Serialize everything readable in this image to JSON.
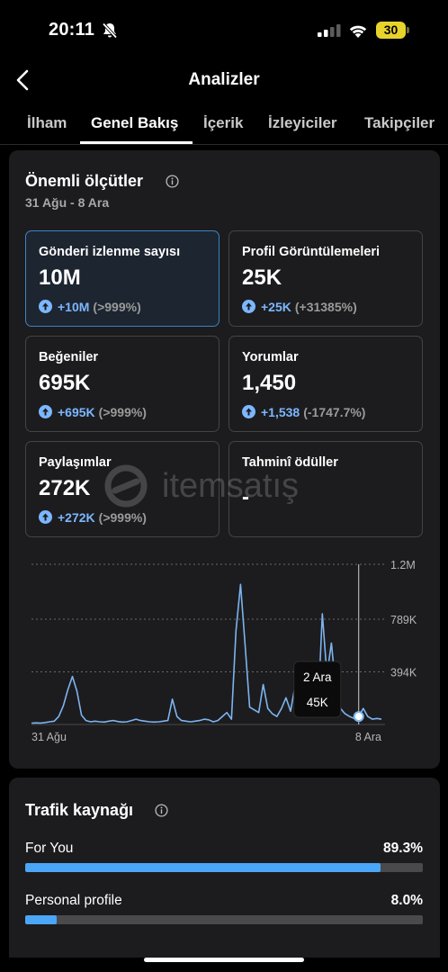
{
  "status_bar": {
    "time": "20:11",
    "battery": "30"
  },
  "header": {
    "title": "Analizler"
  },
  "tabs": [
    {
      "label": "İlham",
      "active": false
    },
    {
      "label": "Genel Bakış",
      "active": true
    },
    {
      "label": "İçerik",
      "active": false
    },
    {
      "label": "İzleyiciler",
      "active": false
    },
    {
      "label": "Takipçiler",
      "active": false
    }
  ],
  "key_metrics": {
    "title": "Önemli ölçütler",
    "date_range": "31 Ağu - 8 Ara",
    "cards": [
      {
        "label": "Gönderi izlenme sayısı",
        "value": "10M",
        "delta": "+10M",
        "pct": "(>999%)",
        "selected": true
      },
      {
        "label": "Profil Görüntülemeleri",
        "value": "25K",
        "delta": "+25K",
        "pct": "(+31385%)",
        "selected": false
      },
      {
        "label": "Beğeniler",
        "value": "695K",
        "delta": "+695K",
        "pct": "(>999%)",
        "selected": false
      },
      {
        "label": "Yorumlar",
        "value": "1,450",
        "delta": "+1,538",
        "pct": "(-1747.7%)",
        "selected": false
      },
      {
        "label": "Paylaşımlar",
        "value": "272K",
        "delta": "+272K",
        "pct": "(>999%)",
        "selected": false
      },
      {
        "label": "Tahminî ödüller",
        "value": "-",
        "delta": "",
        "pct": "",
        "selected": false
      }
    ]
  },
  "watermark": {
    "text": "itemsatış"
  },
  "chart_data": {
    "type": "line",
    "y_ticks": [
      "1.2M",
      "789K",
      "394K"
    ],
    "y_tick_values": [
      1200000,
      789000,
      394000
    ],
    "ylim": [
      0,
      1200000
    ],
    "x_tick_labels": [
      "31 Ağu",
      "8 Ara"
    ],
    "series": [
      {
        "values": [
          10000,
          12000,
          11000,
          15000,
          20000,
          25000,
          60000,
          140000,
          260000,
          360000,
          250000,
          70000,
          30000,
          20000,
          25000,
          20000,
          18000,
          25000,
          30000,
          22000,
          18000,
          20000,
          30000,
          40000,
          30000,
          25000,
          20000,
          18000,
          20000,
          25000,
          30000,
          190000,
          60000,
          30000,
          25000,
          20000,
          25000,
          30000,
          40000,
          35000,
          20000,
          30000,
          60000,
          90000,
          40000,
          700000,
          1050000,
          600000,
          130000,
          110000,
          90000,
          300000,
          120000,
          80000,
          60000,
          120000,
          200000,
          100000,
          290000,
          270000,
          170000,
          60000,
          60000,
          80000,
          830000,
          370000,
          610000,
          250000,
          120000,
          80000,
          60000,
          45000,
          60000,
          120000,
          60000,
          40000,
          45000,
          40000
        ]
      }
    ],
    "tooltip": {
      "date": "2 Ara",
      "value": "45K"
    }
  },
  "traffic": {
    "title": "Trafik kaynağı",
    "rows": [
      {
        "name": "For You",
        "pct": "89.3%",
        "fraction": 0.893
      },
      {
        "name": "Personal profile",
        "pct": "8.0%",
        "fraction": 0.08
      }
    ]
  }
}
